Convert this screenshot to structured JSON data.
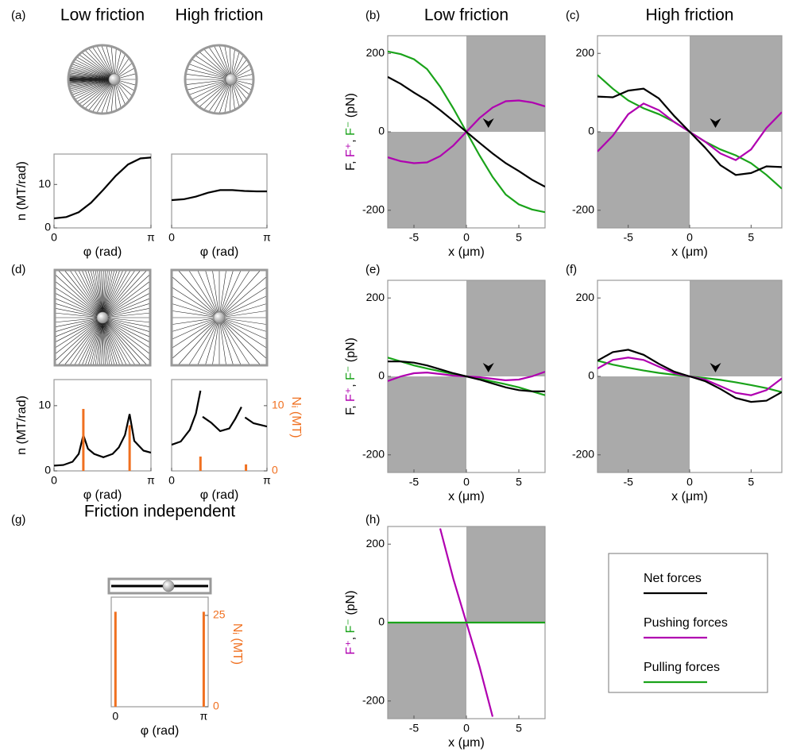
{
  "chart_data": [
    {
      "type": "line",
      "panel": "(a)",
      "title": "Low friction",
      "ylabel": "n (MT/rad)",
      "xlabel": "φ (rad)",
      "x": [
        0,
        0.4,
        0.8,
        1.2,
        1.6,
        2.0,
        2.4,
        2.8,
        3.1416
      ],
      "series": [
        {
          "color": "#000000",
          "values": [
            2.2,
            2.5,
            3.6,
            5.8,
            8.8,
            12,
            14.6,
            16,
            16.2
          ]
        }
      ],
      "xlim": [
        0,
        3.1416
      ],
      "xticks": [
        0,
        {
          "value": 3.1416,
          "label": "π"
        }
      ],
      "ylim": [
        0,
        17
      ],
      "yticks": [
        0,
        10
      ]
    },
    {
      "type": "line",
      "title": "High friction",
      "xlabel": "φ (rad)",
      "x": [
        0,
        0.4,
        0.8,
        1.2,
        1.6,
        2.0,
        2.4,
        2.8,
        3.1416
      ],
      "series": [
        {
          "color": "#000000",
          "values": [
            6.4,
            6.6,
            7.2,
            8.1,
            8.7,
            8.7,
            8.5,
            8.4,
            8.4
          ]
        }
      ],
      "xlim": [
        0,
        3.1416
      ],
      "xticks": [
        0,
        {
          "value": 3.1416,
          "label": "π"
        }
      ],
      "ylim": [
        0,
        17
      ]
    },
    {
      "type": "line",
      "panel": "(b)",
      "title": "Low friction",
      "xlabel": "x (μm)",
      "ylabel": [
        {
          "text": "F, ",
          "color": "#000000"
        },
        {
          "text": "F⁺",
          "color": "#b000b0"
        },
        {
          "text": ", ",
          "color": "#000000"
        },
        {
          "text": "F⁻",
          "color": "#1aa31a"
        },
        {
          "text": " (pN)",
          "color": "#000000"
        }
      ],
      "x": [
        -7.5,
        -6.25,
        -5,
        -3.75,
        -2.5,
        -1.25,
        0,
        1.25,
        2.5,
        3.75,
        5,
        6.25,
        7.5
      ],
      "series": [
        {
          "color": "#1aa31a",
          "values": [
            205,
            198,
            185,
            160,
            115,
            60,
            0,
            -60,
            -115,
            -160,
            -185,
            -198,
            -205
          ]
        },
        {
          "color": "#b000b0",
          "values": [
            -65,
            -75,
            -80,
            -78,
            -62,
            -35,
            0,
            35,
            62,
            78,
            80,
            75,
            65
          ]
        },
        {
          "color": "#000000",
          "values": [
            140,
            122,
            100,
            80,
            55,
            28,
            0,
            -28,
            -55,
            -80,
            -100,
            -122,
            -140
          ]
        }
      ],
      "xlim": [
        -7.5,
        7.5
      ],
      "xticks": [
        -5,
        0,
        5
      ],
      "ylim": [
        -245,
        245
      ],
      "yticks": [
        -200,
        0,
        200
      ],
      "shading": true
    },
    {
      "type": "line",
      "panel": "(c)",
      "title": "High friction",
      "xlabel": "x (μm)",
      "x": [
        -7.5,
        -6.25,
        -5,
        -3.75,
        -2.5,
        -1.25,
        0,
        1.25,
        2.5,
        3.75,
        5,
        6.25,
        7.5
      ],
      "series": [
        {
          "color": "#1aa31a",
          "values": [
            145,
            110,
            80,
            60,
            45,
            25,
            0,
            -25,
            -45,
            -60,
            -80,
            -110,
            -145
          ]
        },
        {
          "color": "#b000b0",
          "values": [
            -50,
            -10,
            45,
            72,
            55,
            25,
            0,
            -25,
            -55,
            -72,
            -45,
            10,
            50
          ]
        },
        {
          "color": "#000000",
          "values": [
            90,
            88,
            105,
            110,
            85,
            40,
            0,
            -40,
            -85,
            -110,
            -105,
            -88,
            -90
          ]
        }
      ],
      "xlim": [
        -7.5,
        7.5
      ],
      "xticks": [
        -5,
        0,
        5
      ],
      "ylim": [
        -245,
        245
      ],
      "yticks": [
        -200,
        0,
        200
      ],
      "shading": true
    },
    {
      "type": "line",
      "panel": "(d)",
      "ylabel": "n (MT/rad)",
      "xlabel": "φ (rad)",
      "x": [
        0,
        0.3,
        0.6,
        0.8,
        0.95,
        1.1,
        1.3,
        1.6,
        1.9,
        2.1,
        2.3,
        2.45,
        2.6,
        2.9,
        3.1416
      ],
      "series": [
        {
          "color": "#000000",
          "values": [
            0.8,
            0.9,
            1.4,
            2.6,
            5.5,
            3.4,
            2.6,
            2.1,
            2.6,
            3.6,
            5.5,
            8.7,
            4.6,
            3.1,
            2.8
          ]
        },
        {
          "type": "bar",
          "axis": "y2",
          "color": "#f07020",
          "x": [
            0.95,
            2.45
          ],
          "values": [
            9.5,
            7
          ]
        }
      ],
      "xlim": [
        0,
        3.1416
      ],
      "xticks": [
        0,
        {
          "value": 3.1416,
          "label": "π"
        }
      ],
      "ylim": [
        0,
        14
      ],
      "yticks": [
        0,
        10
      ],
      "y2lim": [
        0,
        14
      ]
    },
    {
      "type": "line",
      "xlabel": "φ (rad)",
      "y2label": "Nᵢ (MT)",
      "x": [
        0,
        0.3,
        0.6,
        0.8,
        0.95,
        1.0,
        1.02,
        1.3,
        1.6,
        1.9,
        2.1,
        2.3,
        2.4,
        2.42,
        2.7,
        3.1416
      ],
      "series": [
        {
          "color": "#000000",
          "values": [
            4,
            4.5,
            6.3,
            8.8,
            12.3,
            null,
            8.3,
            7.4,
            6.1,
            6.5,
            8,
            9.8,
            null,
            8.2,
            7.3,
            6.8
          ]
        },
        {
          "type": "bar",
          "axis": "y2",
          "color": "#f07020",
          "x": [
            0.95,
            2.45
          ],
          "values": [
            2.2,
            1.0
          ]
        }
      ],
      "xlim": [
        0,
        3.1416
      ],
      "xticks": [
        0,
        {
          "value": 3.1416,
          "label": "π"
        }
      ],
      "ylim": [
        0,
        14
      ],
      "y2lim": [
        0,
        14
      ],
      "y2ticks": [
        0,
        10
      ]
    },
    {
      "type": "line",
      "panel": "(e)",
      "xlabel": "x (μm)",
      "ylabel": [
        {
          "text": "F, ",
          "color": "#000000"
        },
        {
          "text": "F⁺",
          "color": "#b000b0"
        },
        {
          "text": ", ",
          "color": "#000000"
        },
        {
          "text": "F⁻",
          "color": "#1aa31a"
        },
        {
          "text": " (pN)",
          "color": "#000000"
        }
      ],
      "x": [
        -7.5,
        -6.25,
        -5,
        -3.75,
        -2.5,
        -1.25,
        0,
        1.25,
        2.5,
        3.75,
        5,
        6.25,
        7.5
      ],
      "series": [
        {
          "color": "#1aa31a",
          "values": [
            48,
            38,
            28,
            20,
            13,
            6,
            0,
            -6,
            -13,
            -20,
            -28,
            -38,
            -48
          ]
        },
        {
          "color": "#b000b0",
          "values": [
            -12,
            0,
            8,
            10,
            6,
            2,
            0,
            -2,
            -6,
            -10,
            -8,
            0,
            12
          ]
        },
        {
          "color": "#000000",
          "values": [
            38,
            38,
            35,
            28,
            18,
            8,
            0,
            -8,
            -18,
            -28,
            -35,
            -38,
            -38
          ]
        }
      ],
      "xlim": [
        -7.5,
        7.5
      ],
      "xticks": [
        -5,
        0,
        5
      ],
      "ylim": [
        -245,
        245
      ],
      "yticks": [
        -200,
        0,
        200
      ],
      "shading": true
    },
    {
      "type": "line",
      "panel": "(f)",
      "xlabel": "x (μm)",
      "x": [
        -7.5,
        -6.25,
        -5,
        -3.75,
        -2.5,
        -1.25,
        0,
        1.25,
        2.5,
        3.75,
        5,
        6.25,
        7.5
      ],
      "series": [
        {
          "color": "#1aa31a",
          "values": [
            40,
            30,
            22,
            15,
            9,
            4,
            0,
            -4,
            -9,
            -15,
            -22,
            -30,
            -40
          ]
        },
        {
          "color": "#b000b0",
          "values": [
            20,
            42,
            48,
            42,
            25,
            8,
            0,
            -8,
            -25,
            -42,
            -48,
            -35,
            -5
          ]
        },
        {
          "color": "#000000",
          "values": [
            40,
            62,
            68,
            55,
            32,
            12,
            0,
            -12,
            -32,
            -55,
            -65,
            -62,
            -40
          ]
        }
      ],
      "xlim": [
        -7.5,
        7.5
      ],
      "xticks": [
        -5,
        0,
        5
      ],
      "ylim": [
        -245,
        245
      ],
      "yticks": [
        -200,
        0,
        200
      ],
      "shading": true
    },
    {
      "type": "bar",
      "panel": "(g)",
      "title": "Friction independent",
      "xlabel": "φ (rad)",
      "y2label": "Nᵢ (MT)",
      "series": [
        {
          "type": "bar",
          "axis": "y2",
          "color": "#f07020",
          "x": [
            0,
            3.1416
          ],
          "values": [
            26,
            26
          ]
        }
      ],
      "xlim": [
        -0.15,
        3.3
      ],
      "xticks": [
        0,
        {
          "value": 3.1416,
          "label": "π"
        }
      ],
      "y2lim": [
        0,
        30
      ],
      "y2ticks": [
        0,
        25
      ]
    },
    {
      "type": "line",
      "panel": "(h)",
      "xlabel": "x (μm)",
      "ylabel": [
        {
          "text": "F⁺",
          "color": "#b000b0"
        },
        {
          "text": ", ",
          "color": "#000000"
        },
        {
          "text": "F⁻",
          "color": "#1aa31a"
        },
        {
          "text": " (pN)",
          "color": "#000000"
        }
      ],
      "series": [
        {
          "color": "#b000b0",
          "x": [
            -2.5,
            -1.25,
            0,
            1.25,
            2.5
          ],
          "values": [
            240,
            112,
            0,
            -112,
            -240
          ]
        },
        {
          "color": "#1aa31a",
          "x": [
            -7.5,
            7.5
          ],
          "values": [
            0,
            0
          ]
        }
      ],
      "xlim": [
        -7.5,
        7.5
      ],
      "xticks": [
        -5,
        0,
        5
      ],
      "ylim": [
        -245,
        245
      ],
      "yticks": [
        -200,
        0,
        200
      ],
      "shading": true
    }
  ],
  "legend": {
    "entries": [
      {
        "label": "Net forces",
        "color": "#000000"
      },
      {
        "label": "Pushing forces",
        "color": "#b000b0"
      },
      {
        "label": "Pulling forces",
        "color": "#1aa31a"
      }
    ]
  }
}
